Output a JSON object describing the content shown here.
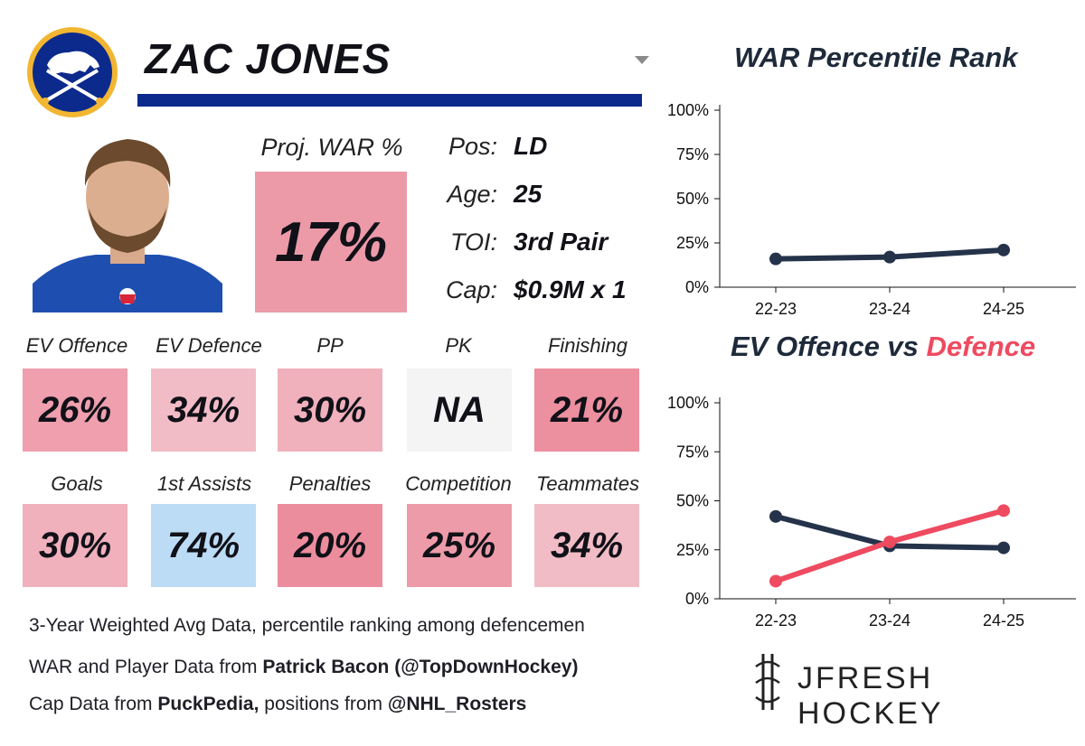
{
  "player": {
    "name": "ZAC JONES",
    "proj_war_label": "Proj. WAR %",
    "proj_war_value": "17%",
    "info": [
      {
        "label": "Pos:",
        "value": "LD"
      },
      {
        "label": "Age:",
        "value": "25"
      },
      {
        "label": "TOI:",
        "value": "3rd Pair"
      },
      {
        "label": "Cap:",
        "value": "$0.9M x 1"
      }
    ]
  },
  "tiles_row1": [
    {
      "label": "EV Offence",
      "value": "26%",
      "color": "#ef9fae"
    },
    {
      "label": "EV Defence",
      "value": "34%",
      "color": "#f2bcc6"
    },
    {
      "label": "PP",
      "value": "30%",
      "color": "#f0b0bc"
    },
    {
      "label": "PK",
      "value": "NA",
      "color": "#f4f4f5"
    },
    {
      "label": "Finishing",
      "value": "21%",
      "color": "#ec8f9f"
    }
  ],
  "tiles_row2": [
    {
      "label": "Goals",
      "value": "30%",
      "color": "#f0b0bc"
    },
    {
      "label": "1st Assists",
      "value": "74%",
      "color": "#bcdcf5"
    },
    {
      "label": "Penalties",
      "value": "20%",
      "color": "#ec8d9d"
    },
    {
      "label": "Competition",
      "value": "25%",
      "color": "#ee9ba9"
    },
    {
      "label": "Teammates",
      "value": "34%",
      "color": "#f2bcc6"
    }
  ],
  "footer": {
    "line1": "3-Year Weighted Avg Data, percentile ranking among defencemen",
    "line2_pre": "WAR and Player Data from ",
    "line2_bold": "Patrick Bacon (@TopDownHockey)",
    "line3_pre": "Cap Data from ",
    "line3_bold1": "PuckPedia,",
    "line3_mid": " positions from ",
    "line3_bold2": "@NHL_Rosters"
  },
  "brand": {
    "text": "JFRESH HOCKEY"
  },
  "colors": {
    "navy": "#25334a",
    "red": "#ee4a60",
    "underline": "#0c2a8c"
  },
  "chart_data": [
    {
      "type": "line",
      "title": "WAR Percentile Rank",
      "categories": [
        "22-23",
        "23-24",
        "24-25"
      ],
      "series": [
        {
          "values": [
            16,
            17,
            21
          ],
          "color": "#25334a"
        }
      ],
      "ylim": [
        0,
        100
      ],
      "yticks": [
        "0%",
        "25%",
        "50%",
        "75%",
        "100%"
      ],
      "grid": false
    },
    {
      "type": "line",
      "title_part1": "EV Offence vs ",
      "title_part2": "Defence",
      "categories": [
        "22-23",
        "23-24",
        "24-25"
      ],
      "series": [
        {
          "values": [
            42,
            27,
            26
          ],
          "color": "#25334a"
        },
        {
          "values": [
            9,
            29,
            45
          ],
          "color": "#ee4a60"
        }
      ],
      "ylim": [
        0,
        100
      ],
      "yticks": [
        "0%",
        "25%",
        "50%",
        "75%",
        "100%"
      ],
      "grid": false
    }
  ]
}
